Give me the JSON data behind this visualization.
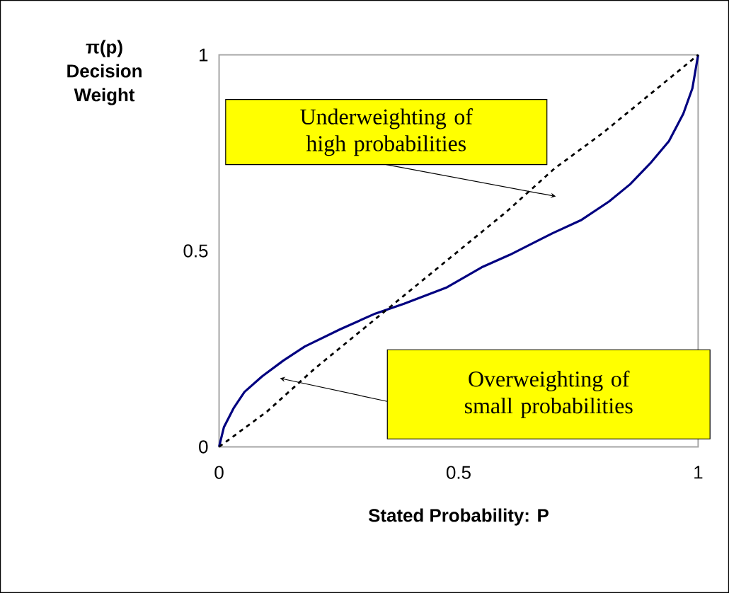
{
  "chart_data": {
    "type": "line",
    "xlabel": "Stated Probability: P",
    "ylabel": "π(p) Decision Weight",
    "xlim": [
      0,
      1
    ],
    "ylim": [
      0,
      1
    ],
    "xticks": [
      0,
      0.5,
      1
    ],
    "yticks": [
      0,
      0.5,
      1
    ],
    "series": [
      {
        "color": "#000080",
        "line_style": "solid",
        "x": [
          0,
          0.01,
          0.031,
          0.053,
          0.09,
          0.134,
          0.179,
          0.253,
          0.326,
          0.386,
          0.474,
          0.548,
          0.607,
          0.696,
          0.755,
          0.814,
          0.858,
          0.902,
          0.939,
          0.969,
          0.988,
          1
        ],
        "values": [
          0,
          0.05,
          0.1,
          0.14,
          0.18,
          0.22,
          0.256,
          0.3,
          0.34,
          0.365,
          0.406,
          0.458,
          0.49,
          0.545,
          0.578,
          0.626,
          0.67,
          0.726,
          0.78,
          0.85,
          0.915,
          1
        ]
      },
      {
        "color": "#000000",
        "line_style": "dashed",
        "x": [
          0,
          0.1,
          0.2,
          0.3,
          0.4,
          0.5,
          0.6,
          0.7,
          0.8,
          0.9,
          1
        ],
        "values": [
          0,
          0.09,
          0.2,
          0.3,
          0.4,
          0.5,
          0.6,
          0.71,
          0.8,
          0.9,
          1
        ]
      }
    ],
    "annotations": [
      "Underweighting of high probabilities",
      "Overweighting of small probabilities"
    ]
  }
}
